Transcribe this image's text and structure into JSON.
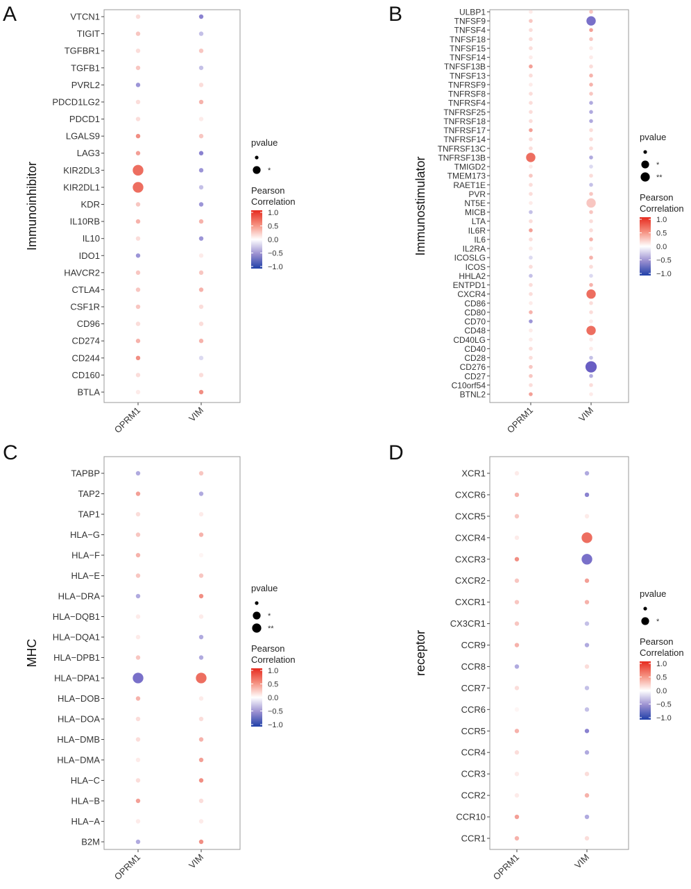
{
  "chart_data": [
    {
      "panel": "A",
      "type": "scatter",
      "subtype": "dot-matrix",
      "ylabel": "Immunoinhibitor",
      "xcategories": [
        "OPRM1",
        "VIM"
      ],
      "ycategories": [
        "VTCN1",
        "TIGIT",
        "TGFBR1",
        "TGFB1",
        "PVRL2",
        "PDCD1LG2",
        "PDCD1",
        "LGALS9",
        "LAG3",
        "KIR2DL3",
        "KIR2DL1",
        "KDR",
        "IL10RB",
        "IL10",
        "IDO1",
        "HAVCR2",
        "CTLA4",
        "CSF1R",
        "CD96",
        "CD274",
        "CD244",
        "CD160",
        "BTLA"
      ],
      "correlation": {
        "OPRM1": [
          0.1,
          0.2,
          0.1,
          0.2,
          -0.4,
          0.1,
          0.1,
          0.5,
          0.4,
          0.7,
          0.7,
          0.2,
          0.3,
          0.1,
          -0.4,
          0.2,
          0.2,
          0.2,
          0.1,
          0.3,
          0.5,
          0.1,
          0.05
        ],
        "VIM": [
          -0.5,
          -0.2,
          0.2,
          -0.2,
          0.1,
          0.3,
          0.05,
          0.2,
          -0.5,
          -0.4,
          -0.2,
          -0.4,
          0.3,
          -0.4,
          0.05,
          0.2,
          0.3,
          0.1,
          0.1,
          0.3,
          -0.1,
          0.1,
          0.5
        ]
      },
      "pvalue_level": {
        "OPRM1": [
          0,
          0,
          0,
          0,
          0,
          0,
          0,
          0,
          0,
          1,
          1,
          0,
          0,
          0,
          0,
          0,
          0,
          0,
          0,
          0,
          0,
          0,
          0
        ],
        "VIM": [
          0,
          0,
          0,
          0,
          0,
          0,
          0,
          0,
          0,
          0,
          0,
          0,
          0,
          0,
          0,
          0,
          0,
          0,
          0,
          0,
          0,
          0,
          0
        ]
      },
      "legend": {
        "pvalue_title": "pvalue",
        "pvalue_levels": [
          "",
          "*"
        ],
        "color_title_line1": "Pearson",
        "color_title_line2": "Correlation",
        "color_ticks": [
          "1.0",
          "0.5",
          "0.0",
          "−0.5",
          "−1.0"
        ]
      }
    },
    {
      "panel": "B",
      "type": "scatter",
      "subtype": "dot-matrix",
      "ylabel": "Immunostimulator",
      "xcategories": [
        "OPRM1",
        "VIM"
      ],
      "ycategories": [
        "ULBP1",
        "TNFSF9",
        "TNFSF4",
        "TNFSF18",
        "TNFSF15",
        "TNFSF14",
        "TNFSF13B",
        "TNFSF13",
        "TNFRSF9",
        "TNFRSF8",
        "TNFRSF4",
        "TNFRSF25",
        "TNFRSF18",
        "TNFRSF17",
        "TNFRSF14",
        "TNFRSF13C",
        "TNFRSF13B",
        "TMIGD2",
        "TMEM173",
        "RAET1E",
        "PVR",
        "NT5E",
        "MICB",
        "LTA",
        "IL6R",
        "IL6",
        "IL2RA",
        "ICOSLG",
        "ICOS",
        "HHLA2",
        "ENTPD1",
        "CXCR4",
        "CD86",
        "CD80",
        "CD70",
        "CD48",
        "CD40LG",
        "CD40",
        "CD28",
        "CD276",
        "CD27",
        "C10orf54",
        "BTNL2"
      ],
      "correlation": {
        "OPRM1": [
          0.05,
          0.2,
          0.1,
          0.1,
          0.1,
          0.05,
          0.4,
          0.1,
          0.05,
          0.1,
          0.1,
          0.1,
          0.1,
          0.4,
          0.1,
          0.1,
          0.7,
          0.05,
          0.2,
          0.1,
          0.1,
          0.05,
          -0.2,
          0.1,
          0.4,
          0.1,
          0.05,
          -0.1,
          0.1,
          -0.2,
          0.1,
          0.1,
          0.05,
          0.3,
          -0.4,
          0.05,
          0.05,
          0.1,
          0.1,
          0.2,
          0.2,
          0.1,
          0.4
        ],
        "VIM": [
          0.2,
          -0.6,
          0.4,
          0.2,
          0.05,
          0.05,
          0.1,
          0.3,
          0.3,
          0.2,
          -0.3,
          -0.3,
          -0.3,
          0.1,
          0.1,
          0.1,
          -0.3,
          -0.1,
          0.1,
          -0.2,
          0.2,
          0.2,
          0.2,
          0.1,
          0.1,
          0.3,
          0.05,
          0.3,
          0.1,
          -0.1,
          0.3,
          0.7,
          0.1,
          0.1,
          0.05,
          0.7,
          0.05,
          0.05,
          -0.2,
          -0.7,
          -0.3,
          0.1,
          0.05
        ]
      },
      "pvalue_level": {
        "OPRM1": [
          0,
          0,
          0,
          0,
          0,
          0,
          0,
          0,
          0,
          0,
          0,
          0,
          0,
          0,
          0,
          0,
          1,
          0,
          0,
          0,
          0,
          0,
          0,
          0,
          0,
          0,
          0,
          0,
          0,
          0,
          0,
          0,
          0,
          0,
          0,
          0,
          0,
          0,
          0,
          0,
          0,
          0,
          0
        ],
        "VIM": [
          0,
          1,
          0,
          0,
          0,
          0,
          0,
          0,
          0,
          0,
          0,
          0,
          0,
          0,
          0,
          0,
          0,
          0,
          0,
          0,
          0,
          1,
          0,
          0,
          0,
          0,
          0,
          0,
          0,
          0,
          0,
          1,
          0,
          0,
          0,
          1,
          0,
          0,
          0,
          2,
          0,
          0,
          0
        ]
      },
      "legend": {
        "pvalue_title": "pvalue",
        "pvalue_levels": [
          "",
          "*",
          "**"
        ],
        "color_title_line1": "Pearson",
        "color_title_line2": "Correlation",
        "color_ticks": [
          "1.0",
          "0.5",
          "0.0",
          "−0.5",
          "−1.0"
        ]
      }
    },
    {
      "panel": "C",
      "type": "scatter",
      "subtype": "dot-matrix",
      "ylabel": "MHC",
      "xcategories": [
        "OPRM1",
        "VIM"
      ],
      "ycategories": [
        "TAPBP",
        "TAP2",
        "TAP1",
        "HLA−G",
        "HLA−F",
        "HLA−E",
        "HLA−DRA",
        "HLA−DQB1",
        "HLA−DQA1",
        "HLA−DPB1",
        "HLA−DPA1",
        "HLA−DOB",
        "HLA−DOA",
        "HLA−DMB",
        "HLA−DMA",
        "HLA−C",
        "HLA−B",
        "HLA−A",
        "B2M"
      ],
      "correlation": {
        "OPRM1": [
          -0.3,
          0.4,
          0.1,
          0.2,
          0.3,
          0.2,
          -0.3,
          0.05,
          0.05,
          0.2,
          -0.6,
          0.3,
          0.1,
          0.1,
          0.05,
          0.1,
          0.4,
          0.05,
          -0.3
        ],
        "VIM": [
          0.2,
          -0.3,
          0.05,
          0.3,
          0.02,
          0.2,
          0.5,
          0.05,
          -0.3,
          -0.3,
          0.7,
          0.05,
          0.1,
          0.3,
          0.4,
          0.5,
          0.1,
          0.05,
          0.5
        ]
      },
      "pvalue_level": {
        "OPRM1": [
          0,
          0,
          0,
          0,
          0,
          0,
          0,
          0,
          0,
          0,
          1,
          0,
          0,
          0,
          0,
          0,
          0,
          0,
          0
        ],
        "VIM": [
          0,
          0,
          0,
          0,
          0,
          0,
          0,
          0,
          0,
          0,
          1,
          0,
          0,
          0,
          0,
          0,
          0,
          0,
          0
        ]
      },
      "legend": {
        "pvalue_title": "pvalue",
        "pvalue_levels": [
          "",
          "*",
          "**"
        ],
        "color_title_line1": "Pearson",
        "color_title_line2": "Correlation",
        "color_ticks": [
          "1.0",
          "0.5",
          "0.0",
          "−0.5",
          "−1.0"
        ]
      }
    },
    {
      "panel": "D",
      "type": "scatter",
      "subtype": "dot-matrix",
      "ylabel": "receptor",
      "xcategories": [
        "OPRM1",
        "VIM"
      ],
      "ycategories": [
        "XCR1",
        "CXCR6",
        "CXCR5",
        "CXCR4",
        "CXCR3",
        "CXCR2",
        "CXCR1",
        "CX3CR1",
        "CCR9",
        "CCR8",
        "CCR7",
        "CCR6",
        "CCR5",
        "CCR4",
        "CCR3",
        "CCR2",
        "CCR10",
        "CCR1"
      ],
      "correlation": {
        "OPRM1": [
          0.05,
          0.3,
          0.2,
          0.05,
          0.5,
          0.2,
          0.2,
          0.2,
          0.3,
          -0.3,
          0.1,
          0.02,
          0.3,
          0.1,
          0.05,
          0.05,
          0.4,
          0.3
        ],
        "VIM": [
          -0.3,
          -0.5,
          0.05,
          0.7,
          -0.6,
          0.4,
          0.3,
          -0.2,
          -0.3,
          0.1,
          -0.2,
          -0.2,
          -0.5,
          -0.3,
          0.1,
          0.3,
          -0.3,
          0.1
        ]
      },
      "pvalue_level": {
        "OPRM1": [
          0,
          0,
          0,
          0,
          0,
          0,
          0,
          0,
          0,
          0,
          0,
          0,
          0,
          0,
          0,
          0,
          0,
          0
        ],
        "VIM": [
          0,
          0,
          0,
          1,
          1,
          0,
          0,
          0,
          0,
          0,
          0,
          0,
          0,
          0,
          0,
          0,
          0,
          0
        ]
      },
      "legend": {
        "pvalue_title": "pvalue",
        "pvalue_levels": [
          "",
          "*"
        ],
        "color_title_line1": "Pearson",
        "color_title_line2": "Correlation",
        "color_ticks": [
          "1.0",
          "0.5",
          "0.0",
          "−0.5",
          "−1.0"
        ]
      }
    }
  ],
  "colors": {
    "positive": "#e8412f",
    "neutral": "#ffffff",
    "negative": "#3b2db0"
  }
}
